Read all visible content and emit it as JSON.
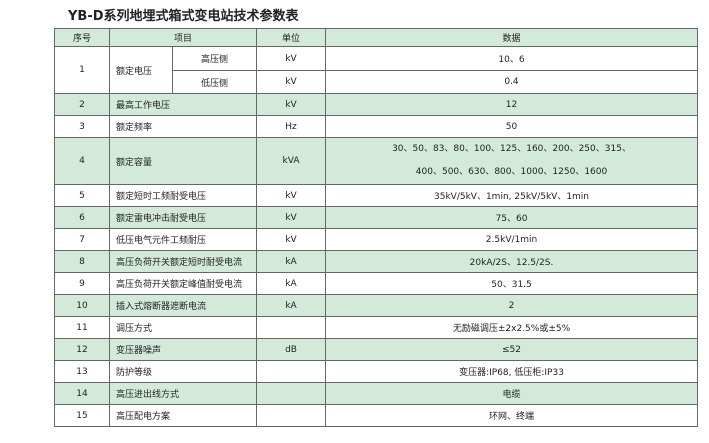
{
  "title": "YB-D系列地埋式箱式变电站技术参数表",
  "table": {
    "header": [
      "序号",
      "项目",
      "单位",
      "数据"
    ],
    "rows": [
      {
        "no": "1",
        "item": "额定电压",
        "subrows": [
          {
            "item": "高压侧",
            "unit": "kV",
            "data": "10、6"
          },
          {
            "item": "低压侧",
            "unit": "kV",
            "data": "0.4"
          }
        ]
      },
      {
        "no": "2",
        "item": "最高工作电压",
        "unit": "kV",
        "data": "12"
      },
      {
        "no": "3",
        "item": "额定频率",
        "unit": "Hz",
        "data": "50"
      },
      {
        "no": "4",
        "item": "额定容量",
        "unit": "kVA",
        "data": [
          "30、50、83、80、100、125、160、200、250、315、",
          "400、500、630、800、1000、1250、1600"
        ]
      },
      {
        "no": "5",
        "item": "额定短时工频耐受电压",
        "unit": "kV",
        "data": "35kV/5kV、1min, 25kV/5kV、1min"
      },
      {
        "no": "6",
        "item": "额定雷电冲击耐受电压",
        "unit": "kV",
        "data": "75、60"
      },
      {
        "no": "7",
        "item": "低压电气元件工频耐压",
        "unit": "kV",
        "data": "2.5kV/1min"
      },
      {
        "no": "8",
        "item": "高压负荷开关额定短时耐受电流",
        "unit": "kA",
        "data": "20kA/2S、12.5/2S."
      },
      {
        "no": "9",
        "item": "高压负荷开关额定峰值耐受电流",
        "unit": "kA",
        "data": "50、31.5"
      },
      {
        "no": "10",
        "item": "插入式熔断器遮断电流",
        "unit": "kA",
        "data": "2"
      },
      {
        "no": "11",
        "item": "调压方式",
        "data": "无励磁调压±2x2.5%或±5%"
      },
      {
        "no": "12",
        "item": "变压器噪声",
        "unit": "dB",
        "data": "≤52"
      },
      {
        "no": "13",
        "item": "防护等级",
        "data": "变压器:IP68, 低压柜:IP33"
      },
      {
        "no": "14",
        "item": "高压进出线方式",
        "data": "电缆"
      },
      {
        "no": "15",
        "item": "高压配电方案",
        "data": "环网、终端"
      }
    ]
  }
}
